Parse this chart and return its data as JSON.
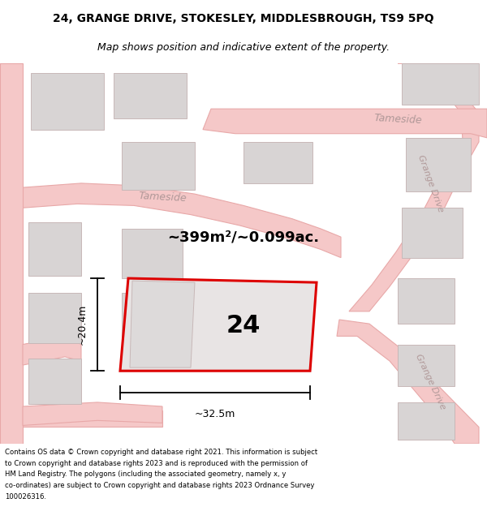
{
  "title": "24, GRANGE DRIVE, STOKESLEY, MIDDLESBROUGH, TS9 5PQ",
  "subtitle": "Map shows position and indicative extent of the property.",
  "footer_lines": [
    "Contains OS data © Crown copyright and database right 2021. This information is subject",
    "to Crown copyright and database rights 2023 and is reproduced with the permission of",
    "HM Land Registry. The polygons (including the associated geometry, namely x, y",
    "co-ordinates) are subject to Crown copyright and database rights 2023 Ordnance Survey",
    "100026316."
  ],
  "area_text": "~399m²/~0.099ac.",
  "plot_number": "24",
  "dim_width": "~32.5m",
  "dim_height": "~20.4m",
  "map_bg": "#ffffff",
  "road_color": "#f5c8c8",
  "road_edge_color": "#e8a8a8",
  "plot_fill": "#e8e4e4",
  "plot_outline": "#dd0000",
  "building_fill": "#d8d4d4",
  "building_edge": "#c8b8b8",
  "street_label_color": "#b09898",
  "title_fontsize": 10,
  "subtitle_fontsize": 9
}
